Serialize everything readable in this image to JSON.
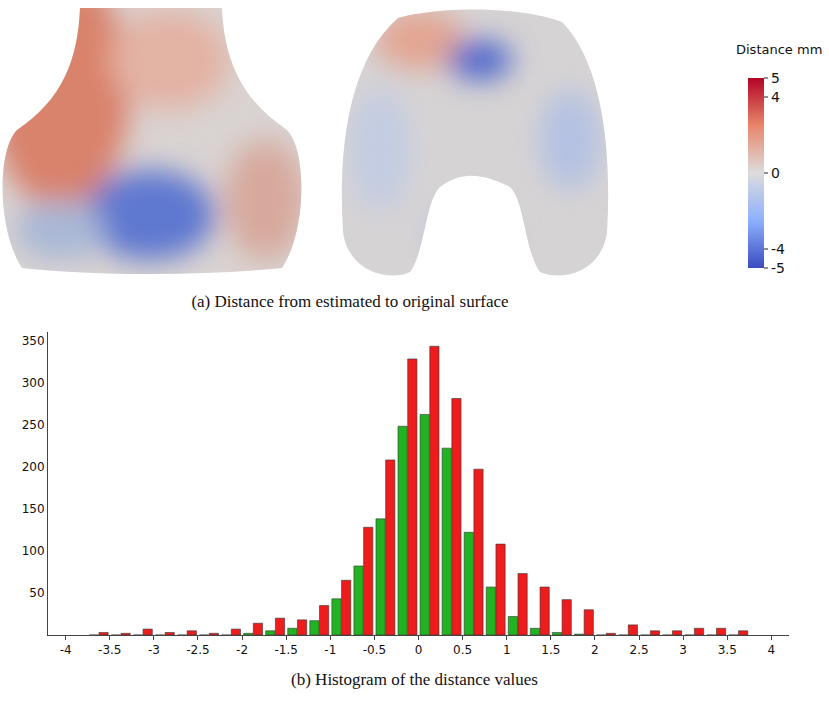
{
  "panels": [
    {
      "caption": "(a) Distance from estimated to original surface",
      "colorbar": {
        "title": "Distance mm",
        "range": [
          -5,
          5
        ],
        "ticks": [
          -5,
          -4,
          0,
          4,
          5
        ]
      }
    }
  ],
  "chart_data": {
    "type": "histogram",
    "title": "(b) Histogram of the distance values",
    "bins": [
      -3.75,
      -3.5,
      -3.25,
      -3,
      -2.75,
      -2.5,
      -2.25,
      -2,
      -1.75,
      -1.5,
      -1.25,
      -1,
      -0.75,
      -0.5,
      -0.25,
      0,
      0.25,
      0.5,
      0.75,
      1,
      1.25,
      1.5,
      1.75,
      2,
      2.25,
      2.5,
      2.75,
      3,
      3.25,
      3.5,
      3.75
    ],
    "series": [
      {
        "color": "#22b322",
        "values": [
          0,
          0,
          0,
          0,
          0,
          0,
          0,
          2,
          5,
          8,
          17,
          43,
          82,
          138,
          248,
          262,
          222,
          122,
          57,
          22,
          8,
          3,
          1,
          0,
          0,
          0,
          0,
          0,
          0,
          0
        ]
      },
      {
        "color": "#ee1c1c",
        "values": [
          3,
          2,
          7,
          3,
          5,
          2,
          7,
          14,
          20,
          18,
          35,
          65,
          128,
          208,
          328,
          343,
          281,
          197,
          108,
          73,
          57,
          42,
          30,
          2,
          12,
          5,
          5,
          8,
          8,
          5
        ]
      }
    ],
    "xlim": [
      -4.2,
      4.2
    ],
    "xticks": [
      -4,
      -3.5,
      -3,
      -2.5,
      -2,
      -1.5,
      -1,
      -0.5,
      0,
      0.5,
      1,
      1.5,
      2,
      2.5,
      3,
      3.5,
      4
    ],
    "ylim": [
      0,
      360
    ],
    "yticks": [
      50,
      100,
      150,
      200,
      250,
      300,
      350
    ],
    "grid": false
  }
}
